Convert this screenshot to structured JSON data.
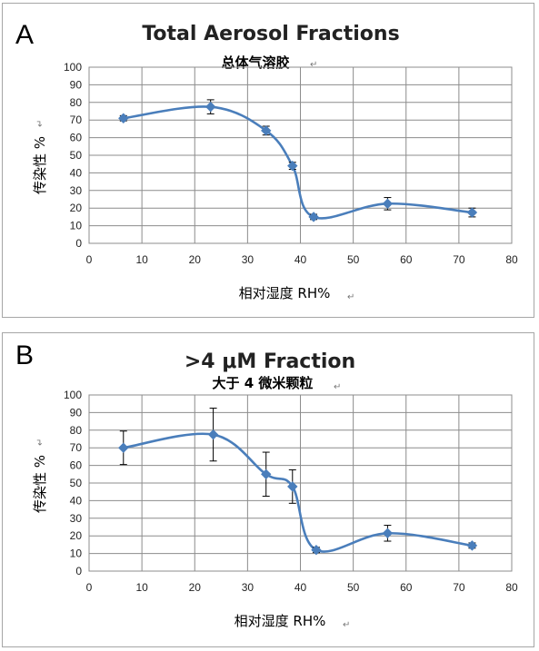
{
  "chart_data": [
    {
      "panel": "A",
      "type": "line",
      "title": "Total Aerosol Fractions",
      "subtitle": "总体气溶胶",
      "xlabel": "相对湿度 RH%",
      "ylabel": "传染性 %",
      "xlim": [
        0,
        80
      ],
      "ylim": [
        0,
        100
      ],
      "xticks": [
        "0",
        "10",
        "20",
        "30",
        "40",
        "50",
        "60",
        "70",
        "80"
      ],
      "yticks": [
        "0",
        "10",
        "20",
        "30",
        "40",
        "50",
        "60",
        "70",
        "80",
        "90",
        "100"
      ],
      "grid": true,
      "color": "#4a7ebb",
      "series": [
        {
          "x": [
            6.5,
            23,
            33.5,
            38.5,
            42.5,
            56.5,
            72.5
          ],
          "y": [
            71,
            77.5,
            64,
            44,
            15,
            22.5,
            17.5
          ],
          "err": [
            1.5,
            4,
            2.5,
            2,
            1.5,
            3.5,
            2.5
          ]
        }
      ]
    },
    {
      "panel": "B",
      "type": "line",
      "title": ">4 μM Fraction",
      "subtitle": "大于 4 微米颗粒",
      "xlabel": "相对湿度 RH%",
      "ylabel": "传染性 %",
      "xlim": [
        0,
        80
      ],
      "ylim": [
        0,
        100
      ],
      "xticks": [
        "0",
        "10",
        "20",
        "30",
        "40",
        "50",
        "60",
        "70",
        "80"
      ],
      "yticks": [
        "0",
        "10",
        "20",
        "30",
        "40",
        "50",
        "60",
        "70",
        "80",
        "90",
        "100"
      ],
      "grid": true,
      "color": "#4a7ebb",
      "series": [
        {
          "x": [
            6.5,
            23.5,
            33.5,
            38.5,
            43,
            56.5,
            72.5
          ],
          "y": [
            70,
            77.5,
            55,
            48,
            12,
            21.5,
            14.5
          ],
          "err": [
            9.5,
            15,
            12.5,
            9.5,
            1.5,
            4.5,
            1.5
          ]
        }
      ]
    }
  ]
}
